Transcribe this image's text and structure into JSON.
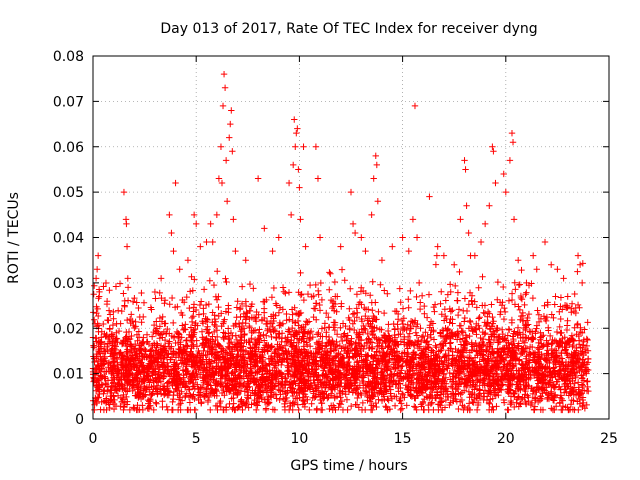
{
  "chart_data": {
    "type": "scatter",
    "title": "Day 013 of 2017, Rate Of TEC Index for receiver dyng",
    "xlabel": "GPS time / hours",
    "ylabel": "ROTI / TECUs",
    "xlim": [
      0,
      25
    ],
    "ylim": [
      0,
      0.08
    ],
    "xticks": [
      0,
      5,
      10,
      15,
      20,
      25
    ],
    "xtick_labels": [
      "0",
      "5",
      "10",
      "15",
      "20",
      "25"
    ],
    "yticks": [
      0,
      0.01,
      0.02,
      0.03,
      0.04,
      0.05,
      0.06,
      0.07,
      0.08
    ],
    "ytick_labels": [
      "0",
      "0.01",
      "0.02",
      "0.03",
      "0.04",
      "0.05",
      "0.06",
      "0.07",
      "0.08"
    ],
    "grid": true,
    "marker": "plus",
    "colors": {
      "series": "#ff0000",
      "grid": "#a0a0a0",
      "axis": "#000000"
    },
    "series": [
      {
        "name": "ROTI",
        "color": "#ff0000",
        "points": [
          [
            0.1,
            0.021
          ],
          [
            0.15,
            0.031
          ],
          [
            0.2,
            0.033
          ],
          [
            0.25,
            0.036
          ],
          [
            0.3,
            0.027
          ],
          [
            0.4,
            0.018
          ],
          [
            1.5,
            0.05
          ],
          [
            1.6,
            0.044
          ],
          [
            1.62,
            0.043
          ],
          [
            1.65,
            0.038
          ],
          [
            1.7,
            0.029
          ],
          [
            1.8,
            0.022
          ],
          [
            3.0,
            0.028
          ],
          [
            3.3,
            0.031
          ],
          [
            3.7,
            0.045
          ],
          [
            3.8,
            0.041
          ],
          [
            3.9,
            0.037
          ],
          [
            4.0,
            0.052
          ],
          [
            4.2,
            0.033
          ],
          [
            4.6,
            0.035
          ],
          [
            4.9,
            0.045
          ],
          [
            5.0,
            0.043
          ],
          [
            5.2,
            0.038
          ],
          [
            5.5,
            0.039
          ],
          [
            5.7,
            0.043
          ],
          [
            5.8,
            0.039
          ],
          [
            6.0,
            0.045
          ],
          [
            6.1,
            0.053
          ],
          [
            6.2,
            0.06
          ],
          [
            6.25,
            0.052
          ],
          [
            6.3,
            0.069
          ],
          [
            6.35,
            0.076
          ],
          [
            6.4,
            0.073
          ],
          [
            6.45,
            0.057
          ],
          [
            6.5,
            0.048
          ],
          [
            6.6,
            0.062
          ],
          [
            6.65,
            0.065
          ],
          [
            6.7,
            0.068
          ],
          [
            6.75,
            0.059
          ],
          [
            6.8,
            0.044
          ],
          [
            6.9,
            0.037
          ],
          [
            7.4,
            0.035
          ],
          [
            8.0,
            0.053
          ],
          [
            8.3,
            0.042
          ],
          [
            8.7,
            0.037
          ],
          [
            9.0,
            0.04
          ],
          [
            9.5,
            0.052
          ],
          [
            9.6,
            0.045
          ],
          [
            9.7,
            0.056
          ],
          [
            9.75,
            0.066
          ],
          [
            9.8,
            0.06
          ],
          [
            9.85,
            0.063
          ],
          [
            9.9,
            0.064
          ],
          [
            9.95,
            0.055
          ],
          [
            10.0,
            0.051
          ],
          [
            10.05,
            0.044
          ],
          [
            10.2,
            0.06
          ],
          [
            10.3,
            0.038
          ],
          [
            10.8,
            0.06
          ],
          [
            10.9,
            0.053
          ],
          [
            11.0,
            0.04
          ],
          [
            11.5,
            0.032
          ],
          [
            12.0,
            0.038
          ],
          [
            12.5,
            0.05
          ],
          [
            12.6,
            0.043
          ],
          [
            12.7,
            0.041
          ],
          [
            13.0,
            0.04
          ],
          [
            13.2,
            0.037
          ],
          [
            13.5,
            0.045
          ],
          [
            13.6,
            0.053
          ],
          [
            13.7,
            0.058
          ],
          [
            13.75,
            0.056
          ],
          [
            13.8,
            0.048
          ],
          [
            14.0,
            0.035
          ],
          [
            14.5,
            0.038
          ],
          [
            15.0,
            0.04
          ],
          [
            15.3,
            0.037
          ],
          [
            15.5,
            0.044
          ],
          [
            15.6,
            0.069
          ],
          [
            15.7,
            0.04
          ],
          [
            16.3,
            0.049
          ],
          [
            16.7,
            0.038
          ],
          [
            17.0,
            0.036
          ],
          [
            17.5,
            0.034
          ],
          [
            17.8,
            0.044
          ],
          [
            18.0,
            0.057
          ],
          [
            18.05,
            0.055
          ],
          [
            18.1,
            0.047
          ],
          [
            18.2,
            0.041
          ],
          [
            18.5,
            0.036
          ],
          [
            18.8,
            0.039
          ],
          [
            19.0,
            0.043
          ],
          [
            19.2,
            0.047
          ],
          [
            19.35,
            0.06
          ],
          [
            19.4,
            0.059
          ],
          [
            19.5,
            0.052
          ],
          [
            19.9,
            0.054
          ],
          [
            20.0,
            0.05
          ],
          [
            20.2,
            0.057
          ],
          [
            20.3,
            0.063
          ],
          [
            20.35,
            0.061
          ],
          [
            20.4,
            0.044
          ],
          [
            20.6,
            0.035
          ],
          [
            21.0,
            0.03
          ],
          [
            21.5,
            0.033
          ],
          [
            21.9,
            0.039
          ],
          [
            22.2,
            0.034
          ],
          [
            22.5,
            0.033
          ],
          [
            22.8,
            0.031
          ],
          [
            23.0,
            0.027
          ],
          [
            23.5,
            0.036
          ],
          [
            23.6,
            0.034
          ],
          [
            23.7,
            0.03
          ],
          [
            0.5,
            0.012
          ],
          [
            0.9,
            0.015
          ],
          [
            1.2,
            0.01
          ],
          [
            2.0,
            0.013
          ],
          [
            2.4,
            0.017
          ],
          [
            2.8,
            0.014
          ],
          [
            3.5,
            0.016
          ],
          [
            4.5,
            0.013
          ],
          [
            5.3,
            0.018
          ],
          [
            5.9,
            0.022
          ],
          [
            7.0,
            0.015
          ],
          [
            7.7,
            0.019
          ],
          [
            8.5,
            0.016
          ],
          [
            9.2,
            0.021
          ],
          [
            10.5,
            0.018
          ],
          [
            11.3,
            0.014
          ],
          [
            11.8,
            0.017
          ],
          [
            12.2,
            0.015
          ],
          [
            12.9,
            0.019
          ],
          [
            14.3,
            0.016
          ],
          [
            14.8,
            0.013
          ],
          [
            15.9,
            0.017
          ],
          [
            16.6,
            0.014
          ],
          [
            17.3,
            0.018
          ],
          [
            18.4,
            0.016
          ],
          [
            19.6,
            0.02
          ],
          [
            20.8,
            0.015
          ],
          [
            21.3,
            0.018
          ],
          [
            22.0,
            0.016
          ],
          [
            22.7,
            0.019
          ],
          [
            23.3,
            0.014
          ],
          [
            23.8,
            0.012
          ],
          [
            0.3,
            0.006
          ],
          [
            1.0,
            0.005
          ],
          [
            2.2,
            0.007
          ],
          [
            3.1,
            0.006
          ],
          [
            4.8,
            0.005
          ],
          [
            6.6,
            0.006
          ],
          [
            8.1,
            0.007
          ],
          [
            9.3,
            0.006
          ],
          [
            11.1,
            0.005
          ],
          [
            12.4,
            0.006
          ],
          [
            14.1,
            0.005
          ],
          [
            15.2,
            0.003
          ],
          [
            16.9,
            0.006
          ],
          [
            17.9,
            0.003
          ],
          [
            19.1,
            0.005
          ],
          [
            20.1,
            0.006
          ],
          [
            21.7,
            0.005
          ],
          [
            23.1,
            0.006
          ]
        ]
      }
    ],
    "background_band": {
      "x_start": 0,
      "x_end": 24,
      "y_center": 0.01,
      "y_spread": 0.008
    }
  }
}
